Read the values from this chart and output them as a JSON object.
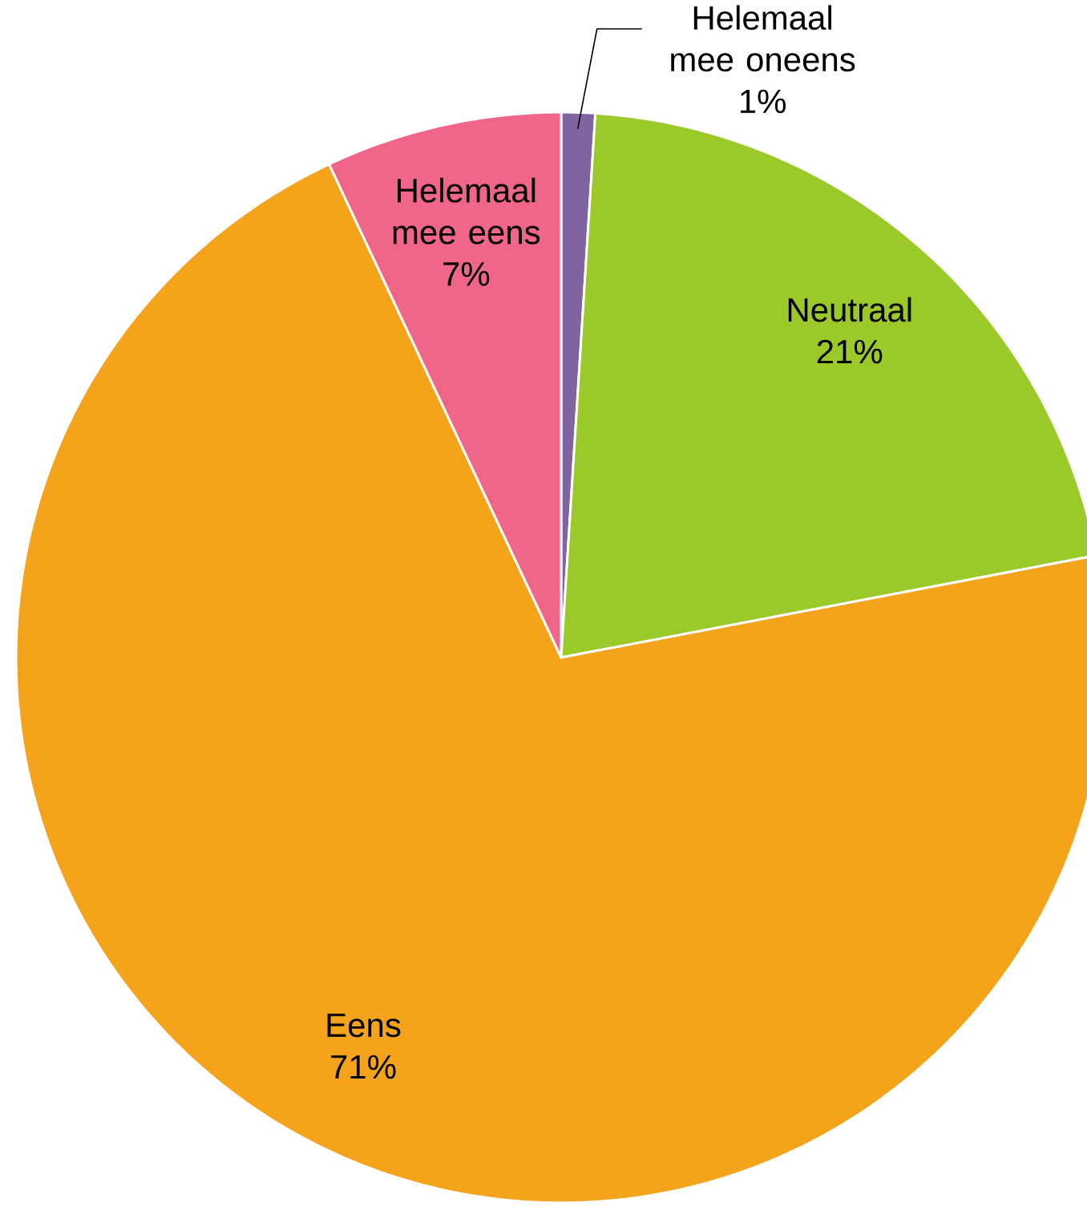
{
  "chart_data": {
    "type": "pie",
    "categories": [
      "Helemaal mee oneens",
      "Neutraal",
      "Eens",
      "Helemaal mee eens"
    ],
    "values": [
      1,
      21,
      71,
      7
    ],
    "colors": [
      "#8064a2",
      "#9bc92a",
      "#f5a31a",
      "#f06688"
    ],
    "value_labels": [
      "1%",
      "21%",
      "71%",
      "7%"
    ]
  }
}
